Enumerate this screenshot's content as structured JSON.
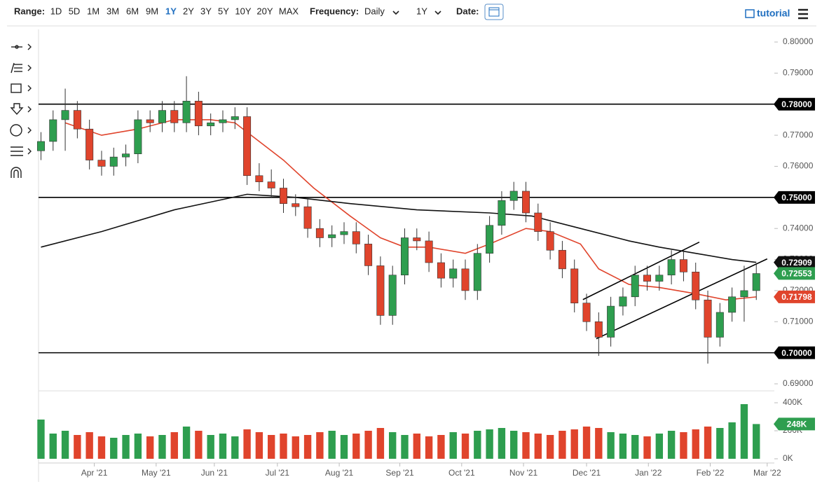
{
  "toolbar": {
    "range_label": "Range:",
    "periods": [
      "1D",
      "5D",
      "1M",
      "3M",
      "6M",
      "9M",
      "1Y",
      "2Y",
      "3Y",
      "5Y",
      "10Y",
      "20Y",
      "MAX"
    ],
    "frequency_label": "Frequency:",
    "frequency": "Daily",
    "span": "1Y",
    "date_label": "Date:",
    "tutorial": "tutorial"
  },
  "chart_data": {
    "type": "candlestick",
    "xlim": [
      -0.2,
      60.2
    ],
    "xticks": [
      {
        "value": 4.4,
        "label": "Apr '21"
      },
      {
        "value": 9.5,
        "label": "May '21"
      },
      {
        "value": 14.3,
        "label": "Jun '21"
      },
      {
        "value": 19.5,
        "label": "Jul '21"
      },
      {
        "value": 24.6,
        "label": "Aug '21"
      },
      {
        "value": 29.6,
        "label": "Sep '21"
      },
      {
        "value": 34.7,
        "label": "Oct '21"
      },
      {
        "value": 39.8,
        "label": "Nov '21"
      },
      {
        "value": 45.0,
        "label": "Dec '21"
      },
      {
        "value": 50.1,
        "label": "Jan '22"
      },
      {
        "value": 55.2,
        "label": "Feb '22"
      },
      {
        "value": 59.9,
        "label": "Mar '22"
      }
    ],
    "ylim": [
      0.69,
      0.8
    ],
    "yticks": [
      {
        "value": 0.69,
        "label": "0.69000"
      },
      {
        "value": 0.7,
        "label": "0.70000"
      },
      {
        "value": 0.71,
        "label": "0.71000"
      },
      {
        "value": 0.72,
        "label": "0.72000"
      },
      {
        "value": 0.73,
        "label": "0.73000"
      },
      {
        "value": 0.74,
        "label": "0.74000"
      },
      {
        "value": 0.75,
        "label": "0.75000"
      },
      {
        "value": 0.76,
        "label": "0.76000"
      },
      {
        "value": 0.77,
        "label": "0.77000"
      },
      {
        "value": 0.78,
        "label": "0.78000"
      },
      {
        "value": 0.79,
        "label": "0.79000"
      },
      {
        "value": 0.8,
        "label": "0.80000"
      }
    ],
    "up_color": "#2e9e4f",
    "down_color": "#e0442c",
    "open": [
      0.765,
      0.768,
      0.775,
      0.778,
      0.772,
      0.762,
      0.76,
      0.763,
      0.764,
      0.775,
      0.774,
      0.778,
      0.774,
      0.781,
      0.773,
      0.774,
      0.775,
      0.776,
      0.757,
      0.755,
      0.753,
      0.748,
      0.747,
      0.74,
      0.737,
      0.738,
      0.739,
      0.735,
      0.728,
      0.712,
      0.725,
      0.737,
      0.736,
      0.729,
      0.724,
      0.727,
      0.72,
      0.732,
      0.741,
      0.749,
      0.752,
      0.745,
      0.739,
      0.733,
      0.727,
      0.716,
      0.71,
      0.705,
      0.715,
      0.718,
      0.725,
      0.723,
      0.725,
      0.73,
      0.726,
      0.717,
      0.705,
      0.713,
      0.718,
      0.72
    ],
    "high": [
      0.771,
      0.778,
      0.785,
      0.781,
      0.775,
      0.765,
      0.766,
      0.767,
      0.778,
      0.778,
      0.781,
      0.781,
      0.789,
      0.784,
      0.777,
      0.778,
      0.779,
      0.779,
      0.761,
      0.759,
      0.756,
      0.751,
      0.75,
      0.743,
      0.741,
      0.742,
      0.742,
      0.738,
      0.731,
      0.728,
      0.74,
      0.74,
      0.739,
      0.732,
      0.73,
      0.73,
      0.735,
      0.744,
      0.752,
      0.755,
      0.755,
      0.748,
      0.742,
      0.736,
      0.73,
      0.719,
      0.713,
      0.718,
      0.721,
      0.728,
      0.728,
      0.728,
      0.733,
      0.733,
      0.729,
      0.72,
      0.716,
      0.721,
      0.728,
      0.7285
    ],
    "low": [
      0.762,
      0.765,
      0.765,
      0.769,
      0.759,
      0.757,
      0.757,
      0.76,
      0.761,
      0.771,
      0.771,
      0.771,
      0.771,
      0.77,
      0.77,
      0.771,
      0.772,
      0.754,
      0.752,
      0.75,
      0.745,
      0.744,
      0.737,
      0.734,
      0.734,
      0.735,
      0.732,
      0.725,
      0.709,
      0.709,
      0.722,
      0.733,
      0.726,
      0.721,
      0.721,
      0.717,
      0.717,
      0.729,
      0.738,
      0.746,
      0.742,
      0.736,
      0.73,
      0.724,
      0.713,
      0.707,
      0.699,
      0.702,
      0.712,
      0.715,
      0.72,
      0.72,
      0.722,
      0.723,
      0.714,
      0.6965,
      0.702,
      0.71,
      0.71,
      0.717
    ],
    "close": [
      0.768,
      0.775,
      0.778,
      0.772,
      0.762,
      0.76,
      0.763,
      0.764,
      0.775,
      0.774,
      0.778,
      0.774,
      0.781,
      0.773,
      0.774,
      0.775,
      0.776,
      0.757,
      0.755,
      0.753,
      0.748,
      0.747,
      0.74,
      0.737,
      0.738,
      0.739,
      0.735,
      0.728,
      0.712,
      0.725,
      0.737,
      0.736,
      0.729,
      0.724,
      0.727,
      0.72,
      0.732,
      0.741,
      0.749,
      0.752,
      0.745,
      0.739,
      0.733,
      0.727,
      0.716,
      0.71,
      0.705,
      0.715,
      0.718,
      0.725,
      0.723,
      0.725,
      0.73,
      0.726,
      0.717,
      0.705,
      0.713,
      0.718,
      0.72,
      0.7255
    ],
    "lines": [
      {
        "color": "#e0442c",
        "x": [
          2,
          5,
          8,
          11,
          14,
          16,
          20,
          22.5,
          25.5,
          28,
          30,
          32,
          35,
          37,
          40,
          42,
          44.5,
          46,
          48.5,
          51,
          54,
          56.5,
          59
        ],
        "values": [
          0.774,
          0.77,
          0.772,
          0.775,
          0.775,
          0.774,
          0.762,
          0.753,
          0.744,
          0.737,
          0.734,
          0.734,
          0.732,
          0.735,
          0.74,
          0.739,
          0.735,
          0.727,
          0.722,
          0.721,
          0.719,
          0.717,
          0.71798
        ]
      },
      {
        "color": "#111111",
        "x": [
          0,
          5,
          11,
          17,
          21,
          25.5,
          31,
          37,
          40.5,
          44.5,
          48.5,
          51,
          54,
          57,
          59
        ],
        "values": [
          0.734,
          0.739,
          0.746,
          0.751,
          0.75,
          0.748,
          0.746,
          0.745,
          0.744,
          0.74,
          0.736,
          0.734,
          0.732,
          0.73,
          0.72909
        ]
      }
    ],
    "trendlines": [
      {
        "x": [
          45.8,
          59.9
        ],
        "values": [
          0.7045,
          0.7302
        ]
      },
      {
        "x": [
          44.7,
          54.3
        ],
        "values": [
          0.7171,
          0.7356
        ]
      }
    ],
    "hlines": [
      {
        "value": 0.78,
        "label": "0.78000"
      },
      {
        "value": 0.75,
        "label": "0.75000"
      },
      {
        "value": 0.7,
        "label": "0.70000"
      }
    ],
    "badges": [
      {
        "value": 0.72909,
        "label": "0.72909",
        "color": "#111111"
      },
      {
        "value": 0.72553,
        "label": "0.72553",
        "color": "#2e9e4f"
      },
      {
        "value": 0.71798,
        "label": "0.71798",
        "color": "#e0442c"
      }
    ],
    "volume": {
      "ylim": [
        0,
        400000
      ],
      "yticks": [
        {
          "value": 0,
          "label": "0K"
        },
        {
          "value": 200000,
          "label": "200K"
        },
        {
          "value": 400000,
          "label": "400K"
        }
      ],
      "values": [
        280000,
        180000,
        200000,
        170000,
        190000,
        160000,
        150000,
        170000,
        180000,
        160000,
        170000,
        190000,
        230000,
        200000,
        170000,
        180000,
        160000,
        210000,
        190000,
        170000,
        180000,
        160000,
        170000,
        190000,
        200000,
        170000,
        180000,
        200000,
        220000,
        190000,
        170000,
        180000,
        160000,
        170000,
        190000,
        180000,
        200000,
        210000,
        220000,
        200000,
        190000,
        180000,
        170000,
        200000,
        210000,
        230000,
        220000,
        190000,
        180000,
        170000,
        160000,
        180000,
        200000,
        190000,
        210000,
        230000,
        220000,
        260000,
        390000,
        248000
      ],
      "badge": {
        "value": 248000,
        "label": "248K",
        "color": "#2e9e4f"
      }
    }
  }
}
